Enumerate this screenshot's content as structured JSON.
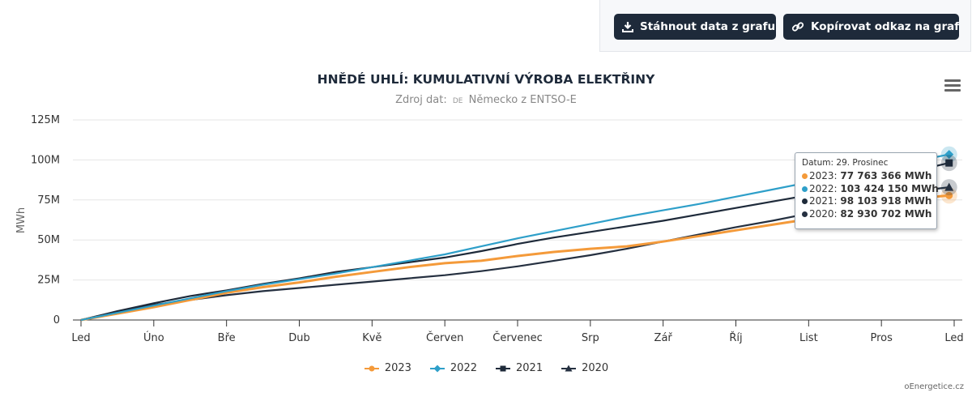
{
  "toolbar": {
    "download_label": "Stáhnout data z grafu",
    "copy_label": "Kopírovat odkaz na graf"
  },
  "credit": "oEnergetice.cz",
  "chart_data": {
    "type": "line",
    "title": "HNĚDÉ UHLÍ: KUMULATIVNÍ VÝROBA ELEKTŘINY",
    "subtitle_prefix": "Zdroj dat:",
    "subtitle_country_code": "DE",
    "subtitle_rest": "Německo z ENTSO-E",
    "ylabel": "MWh",
    "ylim": [
      0,
      125000000
    ],
    "yticks": [
      {
        "value": 0,
        "label": "0"
      },
      {
        "value": 25000000,
        "label": "25M"
      },
      {
        "value": 50000000,
        "label": "50M"
      },
      {
        "value": 75000000,
        "label": "75M"
      },
      {
        "value": 100000000,
        "label": "100M"
      },
      {
        "value": 125000000,
        "label": "125M"
      }
    ],
    "xlim": [
      0,
      12
    ],
    "xticks": [
      "Led",
      "Úno",
      "Bře",
      "Dub",
      "Kvě",
      "Červen",
      "Červenec",
      "Srp",
      "Zář",
      "Říj",
      "List",
      "Pros",
      "Led"
    ],
    "grid": true,
    "legend_position": "bottom-center",
    "series": [
      {
        "name": "2023",
        "color": "#f49a3a",
        "marker": "circle",
        "x": [
          0,
          0.5,
          1,
          1.5,
          2,
          2.5,
          3,
          3.5,
          4,
          4.5,
          5,
          5.5,
          6,
          6.5,
          7,
          7.5,
          8,
          8.5,
          9,
          9.5,
          10,
          10.5,
          11,
          11.5,
          11.93
        ],
        "y": [
          0,
          4000000,
          8000000,
          12500000,
          17000000,
          20500000,
          23500000,
          27000000,
          30000000,
          33000000,
          35500000,
          37000000,
          40000000,
          42500000,
          44500000,
          46000000,
          49000000,
          52500000,
          56000000,
          59500000,
          63000000,
          67500000,
          72000000,
          76000000,
          77763366
        ]
      },
      {
        "name": "2022",
        "color": "#2e9fc9",
        "marker": "diamond",
        "x": [
          0,
          0.5,
          1,
          1.5,
          2,
          2.5,
          3,
          3.5,
          4,
          4.5,
          5,
          5.5,
          6,
          6.5,
          7,
          7.5,
          8,
          8.5,
          9,
          9.5,
          10,
          10.5,
          11,
          11.5,
          11.93
        ],
        "y": [
          0,
          4500000,
          9000000,
          13500000,
          18000000,
          22000000,
          25500000,
          29000000,
          33000000,
          37000000,
          41000000,
          46000000,
          51000000,
          55500000,
          60000000,
          64500000,
          68500000,
          72500000,
          77000000,
          81500000,
          86000000,
          90500000,
          95000000,
          99500000,
          103424150
        ]
      },
      {
        "name": "2021",
        "color": "#1e2a3a",
        "marker": "square",
        "x": [
          0,
          0.5,
          1,
          1.5,
          2,
          2.5,
          3,
          3.5,
          4,
          4.5,
          5,
          5.5,
          6,
          6.5,
          7,
          7.5,
          8,
          8.5,
          9,
          9.5,
          10,
          10.5,
          11,
          11.5,
          11.93
        ],
        "y": [
          0,
          5500000,
          10500000,
          15000000,
          18500000,
          22500000,
          26000000,
          30000000,
          33000000,
          36000000,
          39000000,
          43000000,
          47500000,
          51500000,
          55000000,
          58500000,
          62000000,
          66000000,
          70000000,
          74000000,
          78000000,
          83000000,
          88000000,
          93500000,
          98103918
        ]
      },
      {
        "name": "2020",
        "color": "#253040",
        "marker": "triangle",
        "x": [
          0,
          0.5,
          1,
          1.5,
          2,
          2.5,
          3,
          3.5,
          4,
          4.5,
          5,
          5.5,
          6,
          6.5,
          7,
          7.5,
          8,
          8.5,
          9,
          9.5,
          10,
          10.5,
          11,
          11.5,
          11.93
        ],
        "y": [
          0,
          5000000,
          9500000,
          12500000,
          15500000,
          18000000,
          20000000,
          22000000,
          24000000,
          26000000,
          28000000,
          30500000,
          33500000,
          37000000,
          40500000,
          44500000,
          49000000,
          53500000,
          58000000,
          62000000,
          66500000,
          71500000,
          76000000,
          80500000,
          82930702
        ]
      }
    ],
    "tooltip": {
      "date_label": "Datum: 29. Prosinec",
      "rows": [
        {
          "series": "2023",
          "value": "77 763 366 MWh"
        },
        {
          "series": "2022",
          "value": "103 424 150 MWh"
        },
        {
          "series": "2021",
          "value": "98 103 918 MWh"
        },
        {
          "series": "2020",
          "value": "82 930 702 MWh"
        }
      ]
    }
  }
}
